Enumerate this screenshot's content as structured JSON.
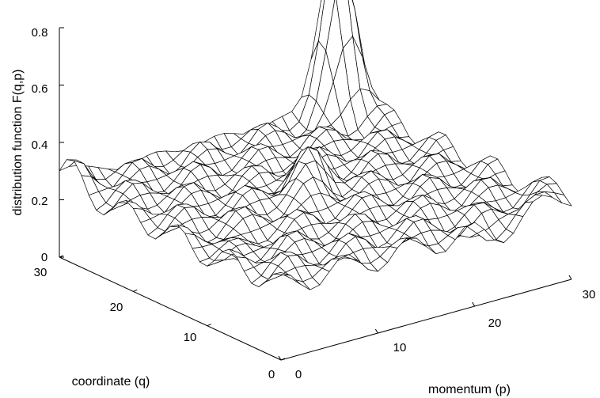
{
  "chart_data": {
    "type": "surface",
    "title": "",
    "xlabel": "momentum (p)",
    "ylabel": "coordinate (q)",
    "zlabel": "distribution function F(q,p)",
    "xlim": [
      0,
      30
    ],
    "ylim": [
      0,
      30
    ],
    "zlim": [
      0,
      0.8
    ],
    "x_ticks": [
      0,
      10,
      20,
      30
    ],
    "y_ticks": [
      0,
      10,
      20,
      30
    ],
    "z_ticks": [
      0,
      0.2,
      0.4,
      0.6,
      0.8
    ],
    "grid": false,
    "mesh": {
      "nx": 30,
      "ny": 30,
      "mesh_color": "#000000",
      "face_color": "#ffffff"
    },
    "features": [
      {
        "name": "main peak",
        "p": 28,
        "q": 29,
        "height": 0.86
      },
      {
        "name": "secondary peak",
        "p": 15,
        "q": 16,
        "height": 0.39
      }
    ],
    "baseline_level": 0.26
  }
}
